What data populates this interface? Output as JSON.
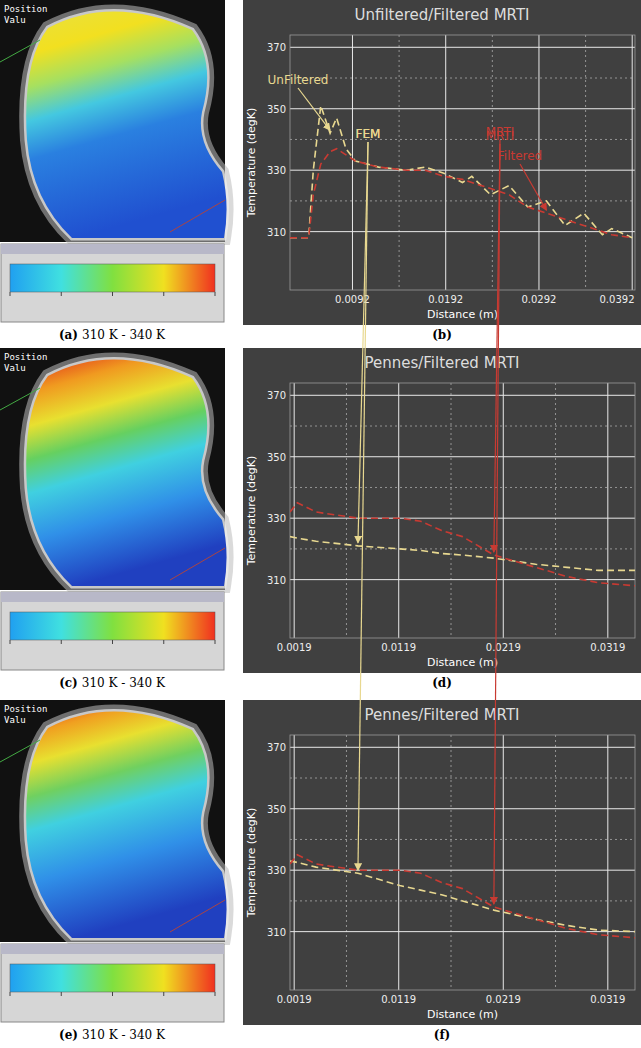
{
  "panels": [
    {
      "label": "(a)",
      "caption": "310 K - 340 K",
      "texts": [
        "Position",
        "Valu"
      ]
    },
    {
      "label": "(b)"
    },
    {
      "label": "(c)",
      "caption": "310 K - 340 K",
      "texts": [
        "Position",
        "Valu"
      ]
    },
    {
      "label": "(d)"
    },
    {
      "label": "(e)",
      "caption": "310 K - 340 K",
      "texts": [
        "Position",
        "Valu"
      ]
    },
    {
      "label": "(f)"
    }
  ],
  "chart_data": [
    {
      "type": "line",
      "title": "Unfiltered/Filtered MRTI",
      "x_label": "Distance (m)",
      "y_label": "Temperature (degK)",
      "x": [
        0.0025,
        0.0045,
        0.005,
        0.0058,
        0.0068,
        0.0075,
        0.0085,
        0.0095,
        0.012,
        0.015,
        0.017,
        0.019,
        0.021,
        0.022,
        0.024,
        0.026,
        0.028,
        0.03,
        0.032,
        0.034,
        0.036,
        0.037,
        0.0392
      ],
      "series": [
        {
          "name": "UnFiltered",
          "color": "#e8d890",
          "line_style": "dashed",
          "values": [
            308,
            308,
            330,
            351,
            342,
            347,
            337,
            333,
            331,
            330,
            331,
            329,
            326,
            328,
            322,
            325,
            318,
            320,
            312,
            316,
            309,
            311,
            308
          ]
        },
        {
          "name": "Filtered",
          "color": "#c83a32",
          "line_style": "dashed",
          "values": [
            308,
            308,
            322,
            332,
            336,
            337,
            335,
            333,
            331,
            330,
            330,
            328,
            327,
            326,
            324,
            322,
            318,
            316,
            314,
            312,
            310,
            309,
            308
          ]
        }
      ],
      "xlim": [
        0.0025,
        0.0395
      ],
      "ylim": [
        291,
        374
      ],
      "xticks": [
        0.0092,
        0.0192,
        0.0292,
        0.0392
      ],
      "yticks": [
        310,
        330,
        350,
        370
      ],
      "grid": true
    },
    {
      "type": "line",
      "title": "Pennes/Filtered MRTI",
      "x_label": "Distance (m)",
      "y_label": "Temperature (degK)",
      "x": [
        0.0015,
        0.0022,
        0.004,
        0.008,
        0.012,
        0.014,
        0.016,
        0.018,
        0.021,
        0.025,
        0.028,
        0.031,
        0.0345
      ],
      "series": [
        {
          "name": "FEM",
          "color": "#e8d890",
          "line_style": "dashed",
          "values": [
            324,
            323.5,
            322.5,
            321,
            320,
            319.5,
            318.5,
            318,
            317,
            315,
            314,
            313,
            313
          ]
        },
        {
          "name": "MRTI",
          "color": "#c83a32",
          "line_style": "dashed",
          "values": [
            332,
            335,
            332,
            330,
            330,
            329,
            326,
            324,
            318,
            314,
            311,
            309,
            308
          ]
        }
      ],
      "xlim": [
        0.0015,
        0.0345
      ],
      "ylim": [
        291,
        374
      ],
      "xticks": [
        0.0019,
        0.0119,
        0.0219,
        0.0319
      ],
      "yticks": [
        310,
        330,
        350,
        370
      ],
      "grid": true
    },
    {
      "type": "line",
      "title": "Pennes/Filtered MRTI",
      "x_label": "Distance (m)",
      "y_label": "Temperature (degK)",
      "x": [
        0.0015,
        0.0022,
        0.004,
        0.008,
        0.012,
        0.014,
        0.016,
        0.018,
        0.021,
        0.025,
        0.028,
        0.031,
        0.0345
      ],
      "series": [
        {
          "name": "FEM",
          "color": "#e8d890",
          "line_style": "dashed",
          "values": [
            333,
            332.5,
            331,
            329,
            325,
            323.5,
            322,
            320,
            317,
            314,
            312,
            310.5,
            310
          ]
        },
        {
          "name": "MRTI",
          "color": "#c83a32",
          "line_style": "dashed",
          "values": [
            332,
            335,
            332,
            330,
            330,
            329,
            326,
            324,
            318,
            314,
            311,
            309,
            308
          ]
        }
      ],
      "xlim": [
        0.0015,
        0.0345
      ],
      "ylim": [
        291,
        374
      ],
      "xticks": [
        0.0019,
        0.0119,
        0.0219,
        0.0319
      ],
      "yticks": [
        310,
        330,
        350,
        370
      ],
      "grid": true
    }
  ]
}
